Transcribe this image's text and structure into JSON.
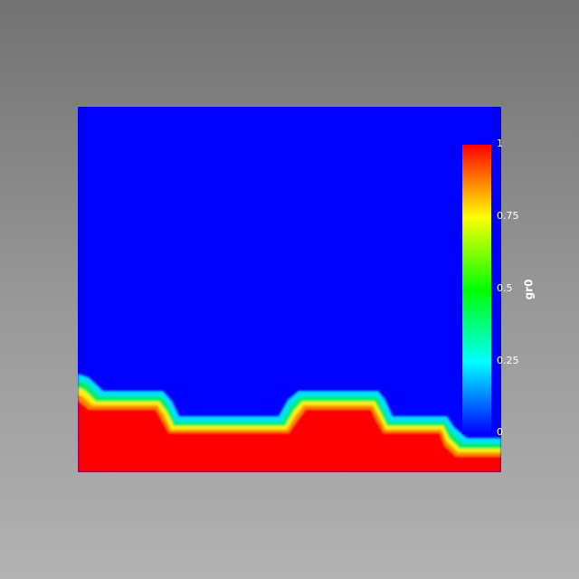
{
  "colors": {
    "low": "#0000ff",
    "high": "#ff0000"
  },
  "colorbar": {
    "title": "gr0",
    "ticks": [
      {
        "value": 1,
        "label": "1"
      },
      {
        "value": 0.75,
        "label": "0.75"
      },
      {
        "value": 0.5,
        "label": "0.5"
      },
      {
        "value": 0.25,
        "label": "0.25"
      },
      {
        "value": 0,
        "label": "0"
      }
    ],
    "colormap": "rainbow (blue-cyan-green-yellow-red)",
    "range": [
      0,
      1
    ]
  }
}
